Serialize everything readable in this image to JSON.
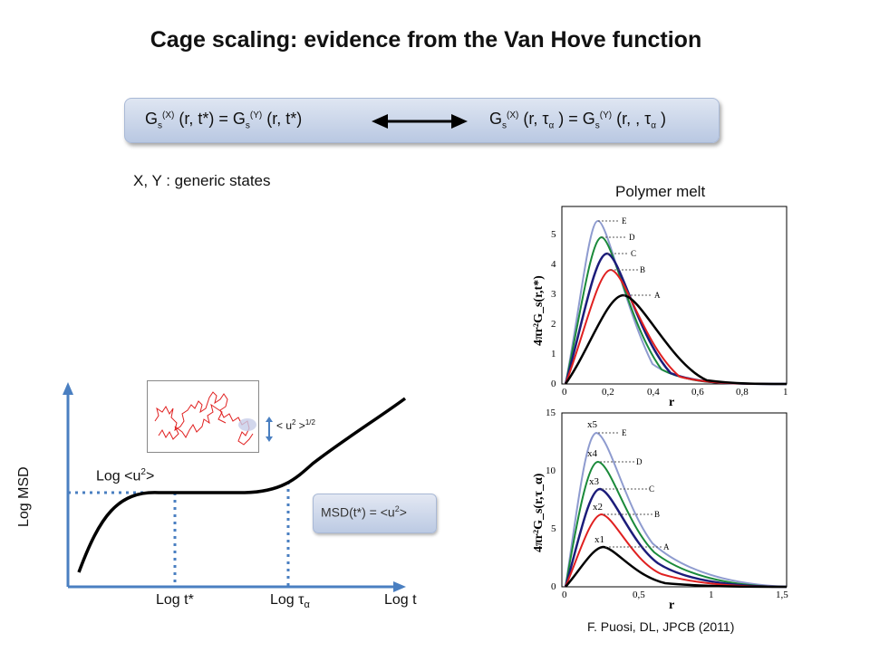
{
  "title": "Cage scaling:  evidence from the Van Hove function",
  "equation_bar": {
    "left": {
      "g": "G",
      "s": "s",
      "sup1": "(X)",
      "mid": " (r, t*) = G",
      "sup2": "(Y)",
      "end": " (r, t*)"
    },
    "right": {
      "g": "G",
      "s": "s",
      "sup1": "(X)",
      "mid": " (r, τ",
      "alpha": "α",
      "mid2": " ) = G",
      "sup2": "(Y)",
      "end": " (r, , τ",
      "end2": " )"
    },
    "arrow": "double-arrow-icon"
  },
  "states_label": "X, Y : generic states",
  "polymer_label": "Polymer melt",
  "sketch": {
    "y_axis_label": "Log MSD",
    "x_tick_tstar": "Log t*",
    "x_tick_tau": "Log τ",
    "x_tick_tau_sub": "α",
    "x_axis_label": "Log t",
    "plateau_label": "Log <u",
    "plateau_sup": "2",
    "plateau_end": ">",
    "amplitude_label": "< u",
    "amplitude_sup": "2",
    "amplitude_end": " >",
    "amplitude_pow": "1/2",
    "msd_box": {
      "a": "MSD(t*) = <u",
      "sup": "2",
      "b": ">"
    }
  },
  "top_panel": {
    "ylabel": "4πr²G_s(r,t*)",
    "xlabel": "r",
    "yticks": [
      "0",
      "1",
      "2",
      "3",
      "4",
      "5"
    ],
    "xticks": [
      "0",
      "0,2",
      "0,4",
      "0,6",
      "0,8",
      "1"
    ],
    "curve_labels": [
      "E",
      "D",
      "C",
      "B",
      "A"
    ]
  },
  "bottom_panel": {
    "ylabel": "4πr²G_s(r,τ_α)",
    "xlabel": "r",
    "yticks": [
      "0",
      "5",
      "10",
      "15"
    ],
    "xticks": [
      "0",
      "0,5",
      "1",
      "1,5"
    ],
    "curve_labels": [
      "E",
      "D",
      "C",
      "B",
      "A"
    ],
    "multipliers": [
      "x5",
      "x4",
      "x3",
      "x2",
      "x1"
    ]
  },
  "citation": "F. Puosi, DL, JPCB (2011)",
  "colors": {
    "E": "#8e9bcf",
    "D": "#1a8a3a",
    "C": "#1c1c7a",
    "B": "#e02020",
    "A": "#000000",
    "bar": "#c9d4ea",
    "dotted": "#4a7fc1"
  }
}
